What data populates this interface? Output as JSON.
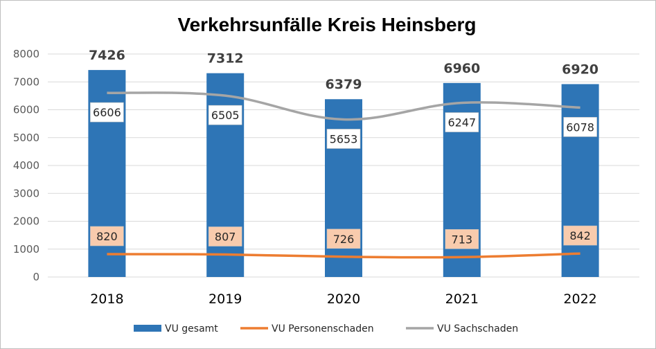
{
  "chart_data": {
    "type": "bar",
    "title": "Verkehrsunfälle Kreis Heinsberg",
    "categories": [
      "2018",
      "2019",
      "2020",
      "2021",
      "2022"
    ],
    "ylim": [
      0,
      8000
    ],
    "yticks": [
      0,
      1000,
      2000,
      3000,
      4000,
      5000,
      6000,
      7000,
      8000
    ],
    "grid": true,
    "legend_position": "bottom",
    "series": [
      {
        "name": "VU gesamt",
        "kind": "bar",
        "color": "#2e75b6",
        "values": [
          7426,
          7312,
          6379,
          6960,
          6920
        ]
      },
      {
        "name": "VU Personenschaden",
        "kind": "line",
        "color": "#ed7d31",
        "label_fill": "#f8cbad",
        "values": [
          820,
          807,
          726,
          713,
          842
        ]
      },
      {
        "name": "VU Sachschaden",
        "kind": "line",
        "color": "#a5a5a5",
        "label_fill": "#ffffff",
        "values": [
          6606,
          6505,
          5653,
          6247,
          6078
        ]
      }
    ]
  }
}
